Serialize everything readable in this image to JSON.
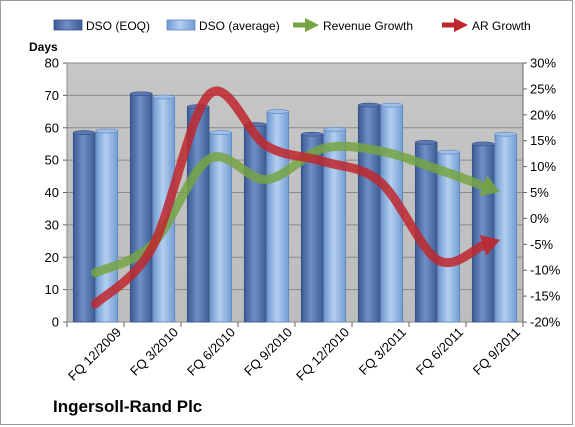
{
  "chart_data": {
    "type": "bar",
    "company": "Ingersoll-Rand Plc",
    "y_left_title": "Days",
    "categories": [
      "FQ 12/2009",
      "FQ 3/2010",
      "FQ 6/2010",
      "FQ 9/2010",
      "FQ 12/2010",
      "FQ 3/2011",
      "FQ 6/2011",
      "FQ 9/2011"
    ],
    "ylim_left": [
      0,
      80
    ],
    "yticks_left": [
      0,
      10,
      20,
      30,
      40,
      50,
      60,
      70,
      80
    ],
    "ylim_right": [
      -20,
      30
    ],
    "yticks_right": [
      -20,
      -15,
      -10,
      -5,
      0,
      5,
      10,
      15,
      20,
      25,
      30
    ],
    "right_axis_format": "percent",
    "grid": true,
    "legend_position": "top",
    "series": [
      {
        "name": "DSO (EOQ)",
        "kind": "bar",
        "axis": "left",
        "color": "#4f6fa8",
        "values": [
          58.5,
          70.5,
          66.5,
          61,
          58,
          67,
          55.5,
          55
        ]
      },
      {
        "name": "DSO (average)",
        "kind": "bar",
        "axis": "left",
        "color": "#8fb4e3",
        "values": [
          59,
          69.5,
          58.5,
          65,
          59.5,
          67,
          52.5,
          58
        ]
      },
      {
        "name": "Revenue Growth",
        "kind": "line-arrow",
        "axis": "right",
        "color": "#76a443",
        "values": [
          -10.5,
          -5,
          11.5,
          7.5,
          13.5,
          13,
          9.5,
          5.5
        ]
      },
      {
        "name": "AR Growth",
        "kind": "line-arrow",
        "axis": "right",
        "color": "#c0272d",
        "values": [
          -16.5,
          -5.5,
          24,
          14,
          11,
          7,
          -8,
          -4.5
        ]
      }
    ]
  }
}
